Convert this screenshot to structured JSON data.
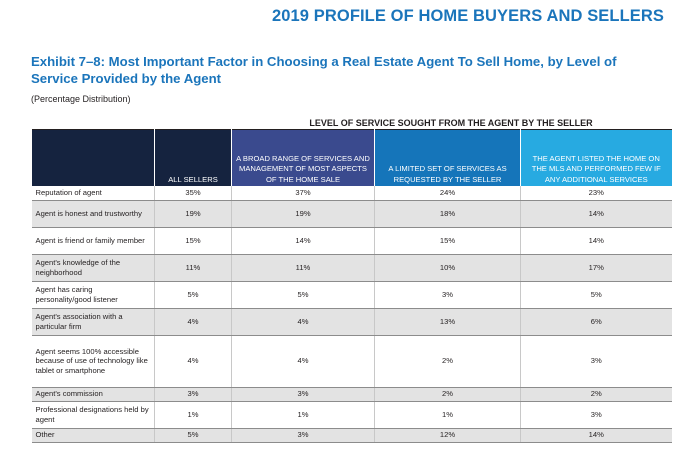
{
  "header": {
    "title": "2019 PROFILE OF HOME BUYERS AND SELLERS"
  },
  "exhibit": {
    "title": "Exhibit 7–8: Most Important Factor in Choosing a Real Estate Agent To Sell Home, by Level of Service Provided by the Agent",
    "subtitle": "(Percentage Distribution)"
  },
  "table": {
    "group_header": "LEVEL OF SERVICE SOUGHT FROM THE AGENT BY THE SELLER",
    "columns": [
      "ALL SELLERS",
      "A BROAD RANGE OF SERVICES AND MANAGEMENT OF MOST ASPECTS OF THE HOME SALE",
      "A LIMITED SET OF SERVICES AS REQUESTED BY THE SELLER",
      "THE AGENT LISTED THE HOME ON THE MLS AND PERFORMED FEW IF ANY ADDITIONAL SERVICES"
    ],
    "column_colors": [
      "#15233f",
      "#3a4a8e",
      "#1575ba",
      "#27aae1"
    ],
    "rows": [
      {
        "label": "Reputation of agent",
        "values": [
          "35%",
          "37%",
          "24%",
          "23%"
        ]
      },
      {
        "label": "Agent is honest and trustworthy",
        "values": [
          "19%",
          "19%",
          "18%",
          "14%"
        ]
      },
      {
        "label": "Agent is friend or family member",
        "values": [
          "15%",
          "14%",
          "15%",
          "14%"
        ]
      },
      {
        "label": "Agent's knowledge of the neighborhood",
        "values": [
          "11%",
          "11%",
          "10%",
          "17%"
        ]
      },
      {
        "label": "Agent has caring personality/good listener",
        "values": [
          "5%",
          "5%",
          "3%",
          "5%"
        ]
      },
      {
        "label": "Agent's association with a particular firm",
        "values": [
          "4%",
          "4%",
          "13%",
          "6%"
        ]
      },
      {
        "label": "Agent seems 100% accessible because of use of technology like tablet or smartphone",
        "values": [
          "4%",
          "4%",
          "2%",
          "3%"
        ]
      },
      {
        "label": "Agent's commission",
        "values": [
          "3%",
          "3%",
          "2%",
          "2%"
        ]
      },
      {
        "label": "Professional designations held by agent",
        "values": [
          "1%",
          "1%",
          "1%",
          "3%"
        ]
      },
      {
        "label": "Other",
        "values": [
          "5%",
          "3%",
          "12%",
          "14%"
        ]
      }
    ]
  },
  "chart_data": {
    "type": "table",
    "title": "Exhibit 7–8: Most Important Factor in Choosing a Real Estate Agent To Sell Home, by Level of Service Provided by the Agent",
    "subtitle": "(Percentage Distribution)",
    "categories": [
      "Reputation of agent",
      "Agent is honest and trustworthy",
      "Agent is friend or family member",
      "Agent's knowledge of the neighborhood",
      "Agent has caring personality/good listener",
      "Agent's association with a particular firm",
      "Agent seems 100% accessible because of use of technology like tablet or smartphone",
      "Agent's commission",
      "Professional designations held by agent",
      "Other"
    ],
    "series": [
      {
        "name": "ALL SELLERS",
        "values": [
          35,
          19,
          15,
          11,
          5,
          4,
          4,
          3,
          1,
          5
        ]
      },
      {
        "name": "A BROAD RANGE OF SERVICES AND MANAGEMENT OF MOST ASPECTS OF THE HOME SALE",
        "values": [
          37,
          19,
          14,
          11,
          5,
          4,
          4,
          3,
          1,
          3
        ]
      },
      {
        "name": "A LIMITED SET OF SERVICES AS REQUESTED BY THE SELLER",
        "values": [
          24,
          18,
          15,
          10,
          3,
          13,
          2,
          2,
          1,
          12
        ]
      },
      {
        "name": "THE AGENT LISTED THE HOME ON THE MLS AND PERFORMED FEW IF ANY ADDITIONAL SERVICES",
        "values": [
          23,
          14,
          14,
          17,
          5,
          6,
          3,
          2,
          3,
          14
        ]
      }
    ],
    "unit": "%"
  }
}
